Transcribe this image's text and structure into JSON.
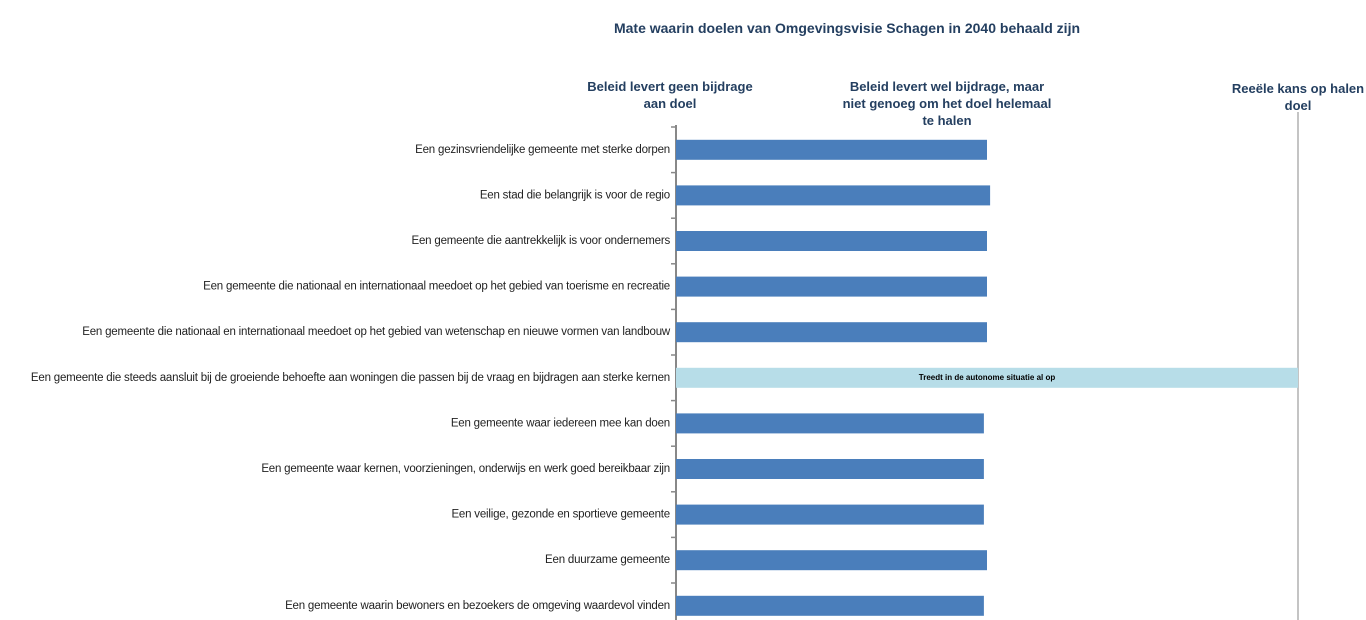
{
  "chart_data": {
    "type": "bar",
    "orientation": "horizontal",
    "title": "Mate waarin doelen van Omgevingsvisie Schagen in 2040 behaald zijn",
    "categories": [
      "Een gezinsvriendelijke gemeente met sterke dorpen",
      "Een stad die belangrijk is voor de regio",
      "Een gemeente die aantrekkelijk is voor ondernemers",
      "Een gemeente die nationaal en internationaal meedoet op het gebied van toerisme en recreatie",
      "Een gemeente die nationaal en internationaal meedoet op het gebied van  wetenschap en nieuwe vormen van landbouw",
      "Een gemeente die steeds aansluit bij de groeiende behoefte aan woningen die passen bij de vraag en bijdragen aan sterke kernen",
      "Een gemeente waar iedereen mee kan doen",
      "Een gemeente waar kernen, voorzieningen, onderwijs en werk goed bereikbaar zijn",
      "Een veilige, gezonde en sportieve gemeente",
      "Een duurzame gemeente",
      "Een gemeente waarin bewoners en bezoekers de omgeving waardevol vinden"
    ],
    "values": [
      1.0,
      1.01,
      1.0,
      1.0,
      1.0,
      2.0,
      0.99,
      0.99,
      0.99,
      1.0,
      0.99
    ],
    "colors": [
      "#4a7ebb",
      "#4a7ebb",
      "#4a7ebb",
      "#4a7ebb",
      "#4a7ebb",
      "#b7dde8",
      "#4a7ebb",
      "#4a7ebb",
      "#4a7ebb",
      "#4a7ebb",
      "#4a7ebb"
    ],
    "bar_labels": [
      null,
      null,
      null,
      null,
      null,
      "Treedt in de autonome situatie al op",
      null,
      null,
      null,
      null,
      null
    ],
    "xlim": [
      0,
      2
    ],
    "xticks": [
      {
        "value": 0,
        "label": "Beleid levert geen bijdrage aan doel"
      },
      {
        "value": 1,
        "label": "Beleid levert wel bijdrage, maar niet genoeg om het doel helemaal te halen"
      },
      {
        "value": 2,
        "label": "Reeële kans op halen doel"
      }
    ]
  }
}
